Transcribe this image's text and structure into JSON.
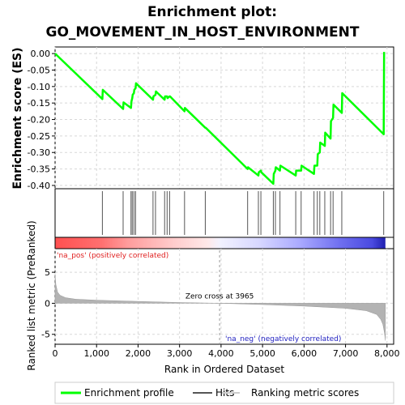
{
  "chart_data": {
    "type": "line",
    "title_line1": "Enrichment plot:",
    "title_line2": "GO_MOVEMENT_IN_HOST_ENVIRONMENT",
    "top_panel": {
      "ylabel": "Enrichment score (ES)",
      "ylim": [
        -0.41,
        0.02
      ],
      "yticks": [
        0.0,
        -0.05,
        -0.1,
        -0.15,
        -0.2,
        -0.25,
        -0.3,
        -0.35,
        -0.4
      ],
      "ytick_labels": [
        "0.00",
        "-0.05",
        "-0.10",
        "-0.15",
        "-0.20",
        "-0.25",
        "-0.30",
        "-0.35",
        "-0.40"
      ],
      "line_color": "#00ff00",
      "series": [
        {
          "x": [
            0,
            1140,
            1150,
            1640,
            1650,
            1830,
            1840,
            1860,
            1870,
            1900,
            1910,
            1940,
            1950,
            2360,
            2370,
            2420,
            2430,
            2640,
            2650,
            2700,
            2710,
            2760,
            2770,
            3120,
            3130,
            3620,
            3630,
            4640,
            4650,
            4900,
            4910,
            4960,
            4970,
            5260,
            5270,
            5310,
            5320,
            5420,
            5430,
            5800,
            5810,
            5930,
            5940,
            6240,
            6250,
            6320,
            6330,
            6380,
            6390,
            6500,
            6510,
            6640,
            6650,
            6700,
            6710,
            6910,
            6920,
            7920,
            7930
          ],
          "y": [
            0.0,
            -0.138,
            -0.11,
            -0.168,
            -0.148,
            -0.165,
            -0.145,
            -0.135,
            -0.125,
            -0.12,
            -0.11,
            -0.105,
            -0.09,
            -0.14,
            -0.13,
            -0.125,
            -0.115,
            -0.14,
            -0.13,
            -0.13,
            -0.135,
            -0.13,
            -0.13,
            -0.175,
            -0.165,
            -0.225,
            -0.225,
            -0.35,
            -0.345,
            -0.37,
            -0.36,
            -0.355,
            -0.36,
            -0.395,
            -0.365,
            -0.355,
            -0.345,
            -0.355,
            -0.34,
            -0.37,
            -0.355,
            -0.355,
            -0.34,
            -0.365,
            -0.34,
            -0.34,
            -0.305,
            -0.3,
            -0.27,
            -0.28,
            -0.24,
            -0.258,
            -0.205,
            -0.195,
            -0.155,
            -0.18,
            -0.12,
            -0.245,
            0.005
          ]
        }
      ]
    },
    "hits": [
      1140,
      1640,
      1830,
      1860,
      1900,
      1940,
      2360,
      2420,
      2640,
      2700,
      2760,
      3120,
      3620,
      4640,
      4900,
      4960,
      5260,
      5310,
      5420,
      5800,
      5930,
      6240,
      6320,
      6380,
      6500,
      6640,
      6700,
      6910,
      7920
    ],
    "bottom_panel": {
      "ylabel": "Ranked list metric (PreRanked)",
      "ylim": [
        -6.6,
        8.8
      ],
      "yticks": [
        5,
        0,
        -5
      ],
      "ytick_labels": [
        "5",
        "0",
        "-5"
      ],
      "area_color": "#b3b3b3",
      "zero_cross_label": "Zero cross at 3965",
      "zero_cross": 3965,
      "pos_label": "'na_pos' (positively correlated)",
      "neg_label": "'na_neg' (negatively correlated)",
      "metric_profile": {
        "x": [
          0,
          20,
          60,
          120,
          250,
          500,
          1000,
          2000,
          3000,
          3965,
          5000,
          6000,
          7000,
          7500,
          7750,
          7850,
          7900,
          7940,
          7960
        ],
        "y": [
          4.6,
          3.0,
          1.8,
          1.3,
          0.9,
          0.65,
          0.5,
          0.3,
          0.12,
          0.0,
          -0.2,
          -0.45,
          -0.8,
          -1.2,
          -1.8,
          -2.6,
          -3.4,
          -4.8,
          -6.0
        ]
      }
    },
    "xaxis": {
      "label": "Rank in Ordered Dataset",
      "xlim": [
        0,
        8160
      ],
      "xticks": [
        0,
        1000,
        2000,
        3000,
        4000,
        5000,
        6000,
        7000,
        8000
      ],
      "xtick_labels": [
        "0",
        "1,000",
        "2,000",
        "3,000",
        "4,000",
        "5,000",
        "6,000",
        "7,000",
        "8,000"
      ],
      "n_genes": 7960
    },
    "legend": {
      "items": [
        {
          "label": "Enrichment profile",
          "color": "#00ff00"
        },
        {
          "label": "Hits",
          "color": "#555555"
        },
        {
          "label": "Ranking metric scores",
          "color": "#cccccc"
        }
      ]
    }
  }
}
